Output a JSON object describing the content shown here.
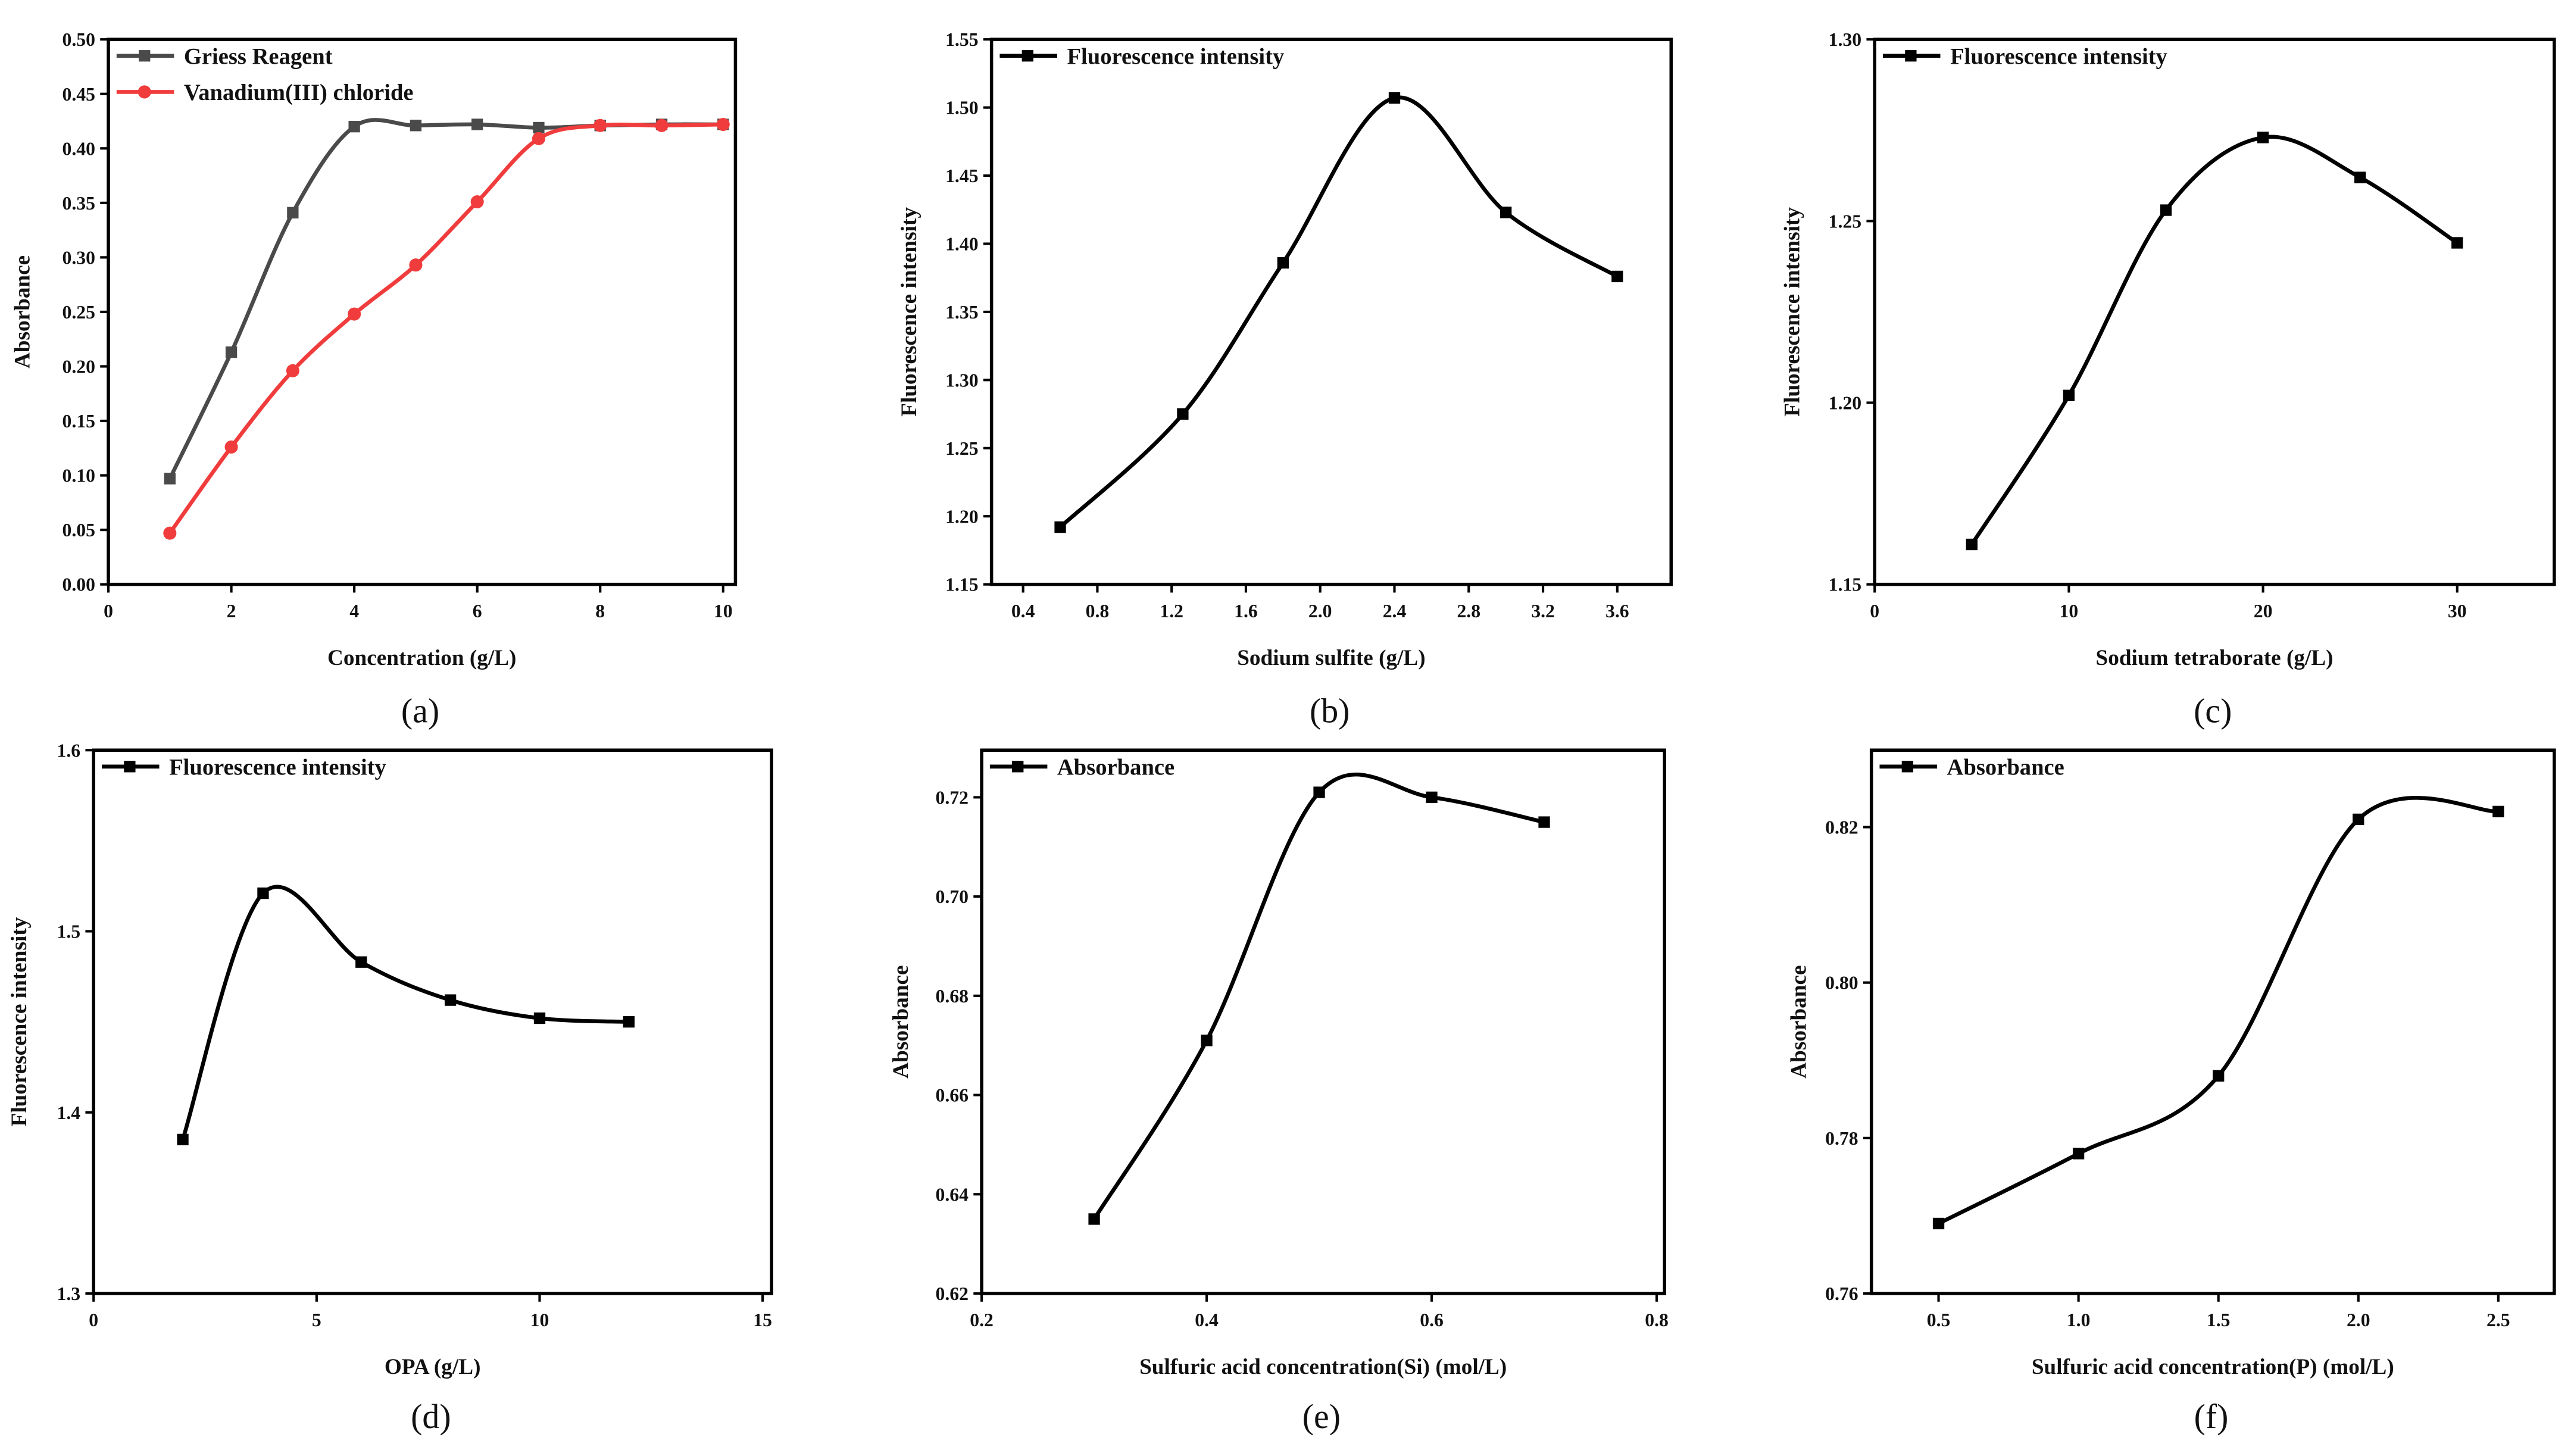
{
  "chart_data": [
    {
      "id": "a",
      "type": "line",
      "panel_label": "(a)",
      "xlabel": "Concentration (g/L)",
      "ylabel": "Absorbance",
      "xlim": [
        0,
        10.2
      ],
      "ylim": [
        0,
        0.5
      ],
      "xticks": [
        "0",
        "2",
        "4",
        "6",
        "8",
        "10"
      ],
      "xtick_values": [
        0,
        2,
        4,
        6,
        8,
        10
      ],
      "yticks": [
        "0.00",
        "0.05",
        "0.10",
        "0.15",
        "0.20",
        "0.25",
        "0.30",
        "0.35",
        "0.40",
        "0.45",
        "0.50"
      ],
      "ytick_values": [
        0,
        0.05,
        0.1,
        0.15,
        0.2,
        0.25,
        0.3,
        0.35,
        0.4,
        0.45,
        0.5
      ],
      "legend_position": "top-left",
      "series": [
        {
          "name": "Griess Reagent",
          "color": "#4a4a4a",
          "marker": "square",
          "x": [
            1,
            2,
            3,
            4,
            5,
            6,
            7,
            8,
            9,
            10
          ],
          "y": [
            0.097,
            0.213,
            0.341,
            0.42,
            0.421,
            0.422,
            0.419,
            0.421,
            0.422,
            0.422
          ]
        },
        {
          "name": "Vanadium(III) chloride",
          "color": "#f03c3c",
          "marker": "circle",
          "x": [
            1,
            2,
            3,
            4,
            5,
            6,
            7,
            8,
            9,
            10
          ],
          "y": [
            0.047,
            0.126,
            0.196,
            0.248,
            0.293,
            0.351,
            0.409,
            0.421,
            0.421,
            0.422
          ]
        }
      ]
    },
    {
      "id": "b",
      "type": "line",
      "panel_label": "(b)",
      "xlabel": "Sodium sulfite (g/L)",
      "ylabel": "Fluorescence intensity",
      "xlim": [
        0.23,
        3.89
      ],
      "ylim": [
        1.15,
        1.55
      ],
      "xticks": [
        "0.4",
        "0.8",
        "1.2",
        "1.6",
        "2.0",
        "2.4",
        "2.8",
        "3.2",
        "3.6"
      ],
      "xtick_values": [
        0.4,
        0.8,
        1.2,
        1.6,
        2.0,
        2.4,
        2.8,
        3.2,
        3.6
      ],
      "yticks": [
        "1.15",
        "1.20",
        "1.25",
        "1.30",
        "1.35",
        "1.40",
        "1.45",
        "1.50",
        "1.55"
      ],
      "ytick_values": [
        1.15,
        1.2,
        1.25,
        1.3,
        1.35,
        1.4,
        1.45,
        1.5,
        1.55
      ],
      "legend_position": "top-left",
      "series": [
        {
          "name": "Fluorescence intensity",
          "color": "#000000",
          "marker": "square",
          "x": [
            0.6,
            1.26,
            1.8,
            2.4,
            3.0,
            3.6
          ],
          "y": [
            1.192,
            1.275,
            1.386,
            1.507,
            1.423,
            1.376
          ]
        }
      ]
    },
    {
      "id": "c",
      "type": "line",
      "panel_label": "(c)",
      "xlabel": "Sodium tetraborate (g/L)",
      "ylabel": "Fluorescence intensity",
      "xlim": [
        0,
        35
      ],
      "ylim": [
        1.15,
        1.3
      ],
      "xticks": [
        "0",
        "10",
        "20",
        "30"
      ],
      "xtick_values": [
        0,
        10,
        20,
        30
      ],
      "yticks": [
        "1.15",
        "1.20",
        "1.25",
        "1.30"
      ],
      "ytick_values": [
        1.15,
        1.2,
        1.25,
        1.3
      ],
      "legend_position": "top-left",
      "series": [
        {
          "name": "Fluorescence intensity",
          "color": "#000000",
          "marker": "square",
          "x": [
            5,
            10,
            15,
            20,
            25,
            30
          ],
          "y": [
            1.161,
            1.202,
            1.253,
            1.273,
            1.262,
            1.244
          ]
        }
      ]
    },
    {
      "id": "d",
      "type": "line",
      "panel_label": "(d)",
      "xlabel": "OPA (g/L)",
      "ylabel": "Fluorescence intensity",
      "xlim": [
        0,
        15.2
      ],
      "ylim": [
        1.3,
        1.6
      ],
      "xticks": [
        "0",
        "5",
        "10",
        "15"
      ],
      "xtick_values": [
        0,
        5,
        10,
        15
      ],
      "yticks": [
        "1.3",
        "1.4",
        "1.5",
        "1.6"
      ],
      "ytick_values": [
        1.3,
        1.4,
        1.5,
        1.6
      ],
      "legend_position": "top-left",
      "series": [
        {
          "name": "Fluorescence intensity",
          "color": "#000000",
          "marker": "square",
          "x": [
            2,
            3.8,
            6,
            8,
            10,
            12
          ],
          "y": [
            1.385,
            1.521,
            1.483,
            1.462,
            1.452,
            1.45
          ]
        }
      ]
    },
    {
      "id": "e",
      "type": "line",
      "panel_label": "(e)",
      "xlabel": "Sulfuric acid concentration(Si) (mol/L)",
      "ylabel": "Absorbance",
      "xlim": [
        0.2,
        0.807
      ],
      "ylim": [
        0.62,
        0.7295
      ],
      "xticks": [
        "0.2",
        "0.4",
        "0.6",
        "0.8"
      ],
      "xtick_values": [
        0.2,
        0.4,
        0.6,
        0.8
      ],
      "yticks": [
        "0.62",
        "0.64",
        "0.66",
        "0.68",
        "0.70",
        "0.72"
      ],
      "ytick_values": [
        0.62,
        0.64,
        0.66,
        0.68,
        0.7,
        0.72
      ],
      "legend_position": "top-left",
      "series": [
        {
          "name": "Absorbance",
          "color": "#000000",
          "marker": "square",
          "x": [
            0.3,
            0.4,
            0.5,
            0.6,
            0.7
          ],
          "y": [
            0.635,
            0.671,
            0.721,
            0.72,
            0.715
          ]
        }
      ]
    },
    {
      "id": "f",
      "type": "line",
      "panel_label": "(f)",
      "xlabel": "Sulfuric acid concentration(P) (mol/L)",
      "ylabel": "Absorbance",
      "xlim": [
        0.26,
        2.7
      ],
      "ylim": [
        0.76,
        0.8299
      ],
      "xticks": [
        "0.5",
        "1.0",
        "1.5",
        "2.0",
        "2.5"
      ],
      "xtick_values": [
        0.5,
        1.0,
        1.5,
        2.0,
        2.5
      ],
      "yticks": [
        "0.76",
        "0.78",
        "0.80",
        "0.82"
      ],
      "ytick_values": [
        0.76,
        0.78,
        0.8,
        0.82
      ],
      "legend_position": "top-left",
      "series": [
        {
          "name": "Absorbance",
          "color": "#000000",
          "marker": "square",
          "x": [
            0.5,
            1.0,
            1.5,
            2.0,
            2.5
          ],
          "y": [
            0.769,
            0.778,
            0.788,
            0.821,
            0.822
          ]
        }
      ]
    }
  ]
}
